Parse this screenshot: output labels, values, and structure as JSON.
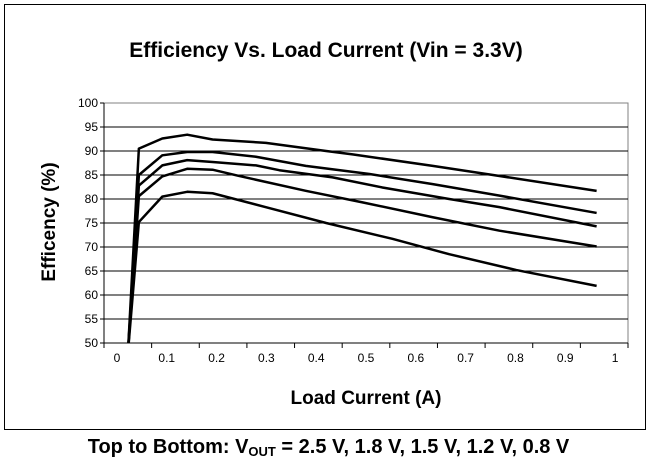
{
  "chart_data": {
    "type": "line",
    "title": "Efficiency Vs. Load Current (Vin = 3.3V)",
    "xlabel": "Load Current (A)",
    "ylabel": "Efficency (%)",
    "xlim": [
      -0.026,
      1.026
    ],
    "ylim": [
      50,
      100
    ],
    "x_ticks": [
      "0",
      "0.1",
      "0.2",
      "0.3",
      "0.4",
      "0.5",
      "0.6",
      "0.7",
      "0.8",
      "0.9",
      "1"
    ],
    "y_ticks": [
      "50",
      "55",
      "60",
      "65",
      "70",
      "75",
      "80",
      "85",
      "90",
      "95",
      "100"
    ],
    "grid": true,
    "series": [
      {
        "name": "2.5 V",
        "x": [
          0.022,
          0.044,
          0.091,
          0.141,
          0.192,
          0.299,
          0.42,
          0.473,
          0.634,
          0.755,
          0.963
        ],
        "y": [
          48,
          90.5,
          92.6,
          93.4,
          92.4,
          91.7,
          90,
          89.3,
          86.9,
          85,
          81.7
        ]
      },
      {
        "name": "1.8 V",
        "x": [
          0.022,
          0.044,
          0.091,
          0.141,
          0.192,
          0.279,
          0.379,
          0.507,
          0.634,
          0.768,
          0.963
        ],
        "y": [
          48,
          85,
          89.1,
          89.8,
          89.8,
          88.8,
          86.9,
          85.2,
          83.1,
          80.7,
          77.1
        ]
      },
      {
        "name": "1.5 V",
        "x": [
          0.022,
          0.044,
          0.091,
          0.141,
          0.192,
          0.279,
          0.326,
          0.433,
          0.533,
          0.667,
          0.768,
          0.963
        ],
        "y": [
          48,
          82.8,
          87,
          88.1,
          87.7,
          87,
          86,
          84.5,
          82.4,
          80,
          78.3,
          74.3
        ]
      },
      {
        "name": "1.2 V",
        "x": [
          0.022,
          0.044,
          0.091,
          0.141,
          0.192,
          0.245,
          0.379,
          0.493,
          0.634,
          0.768,
          0.963
        ],
        "y": [
          48,
          80.6,
          84.7,
          86.3,
          86.1,
          84.8,
          81.7,
          79.3,
          76.2,
          73.4,
          70.1
        ]
      },
      {
        "name": "0.8 V",
        "x": [
          0.022,
          0.044,
          0.091,
          0.141,
          0.192,
          0.299,
          0.42,
          0.553,
          0.667,
          0.802,
          0.963
        ],
        "y": [
          48,
          75.2,
          80.5,
          81.5,
          81.2,
          78.3,
          75,
          71.7,
          68.5,
          65.2,
          61.9
        ]
      }
    ]
  },
  "caption": {
    "prefix": "Top to Bottom: V",
    "subscript": "OUT",
    "suffix": " = 2.5 V, 1.8 V, 1.5 V, 1.2 V, 0.8 V"
  }
}
